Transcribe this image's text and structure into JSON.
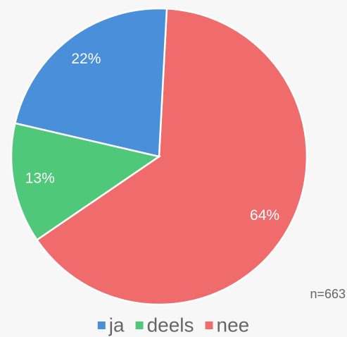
{
  "chart_data": {
    "type": "pie",
    "categories": [
      "ja",
      "deels",
      "nee"
    ],
    "values": [
      22,
      13,
      64
    ],
    "value_labels": [
      "22%",
      "13%",
      "64%"
    ],
    "colors": [
      "#4a8fd9",
      "#50c87a",
      "#f06c6c"
    ],
    "annotation": "n=663",
    "legend": "bottom"
  }
}
